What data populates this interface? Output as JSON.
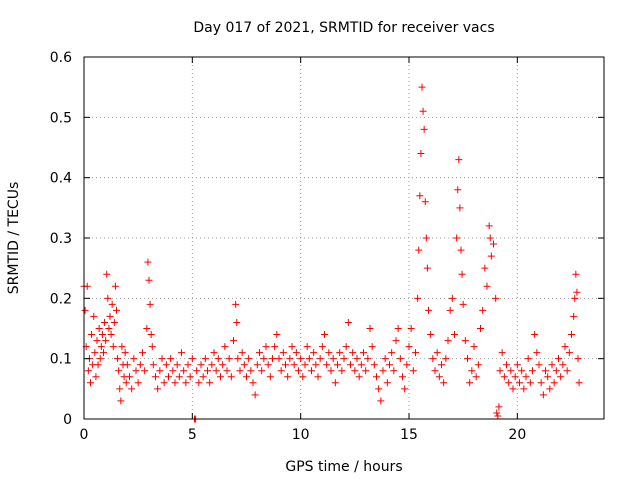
{
  "chart_data": {
    "type": "scatter",
    "title": "Day 017 of 2021, SRMTID for receiver vacs",
    "xlabel": "GPS time / hours",
    "ylabel": "SRMTID / TECUs",
    "xlim": [
      0,
      24
    ],
    "ylim": [
      0,
      0.6
    ],
    "xticks": [
      0,
      5,
      10,
      15,
      20
    ],
    "yticks": [
      0,
      0.1,
      0.2,
      0.3,
      0.4,
      0.5,
      0.6
    ],
    "xtick_labels": [
      "0",
      "5",
      "10",
      "15",
      "20"
    ],
    "ytick_labels": [
      "0",
      "0.1",
      "0.2",
      "0.3",
      "0.4",
      "0.5",
      "0.6"
    ],
    "grid": true,
    "marker": "+",
    "colors": {
      "series": "#ff0000",
      "grid": "#a0a0a0",
      "axis": "#000000"
    },
    "series": [
      {
        "name": "SRMTID",
        "points": [
          [
            0.0,
            0.22
          ],
          [
            0.05,
            0.18
          ],
          [
            0.1,
            0.12
          ],
          [
            0.15,
            0.22
          ],
          [
            0.2,
            0.08
          ],
          [
            0.25,
            0.1
          ],
          [
            0.3,
            0.06
          ],
          [
            0.35,
            0.14
          ],
          [
            0.4,
            0.09
          ],
          [
            0.45,
            0.17
          ],
          [
            0.5,
            0.11
          ],
          [
            0.55,
            0.07
          ],
          [
            0.6,
            0.13
          ],
          [
            0.65,
            0.09
          ],
          [
            0.7,
            0.15
          ],
          [
            0.75,
            0.1
          ],
          [
            0.8,
            0.12
          ],
          [
            0.85,
            0.14
          ],
          [
            0.9,
            0.11
          ],
          [
            0.95,
            0.16
          ],
          [
            1.0,
            0.13
          ],
          [
            1.05,
            0.24
          ],
          [
            1.1,
            0.2
          ],
          [
            1.15,
            0.15
          ],
          [
            1.2,
            0.17
          ],
          [
            1.25,
            0.14
          ],
          [
            1.3,
            0.19
          ],
          [
            1.35,
            0.12
          ],
          [
            1.4,
            0.16
          ],
          [
            1.45,
            0.22
          ],
          [
            1.5,
            0.18
          ],
          [
            1.55,
            0.1
          ],
          [
            1.6,
            0.08
          ],
          [
            1.65,
            0.05
          ],
          [
            1.7,
            0.03
          ],
          [
            1.75,
            0.12
          ],
          [
            1.8,
            0.09
          ],
          [
            1.85,
            0.07
          ],
          [
            1.9,
            0.11
          ],
          [
            1.95,
            0.06
          ],
          [
            2.0,
            0.09
          ],
          [
            2.1,
            0.07
          ],
          [
            2.2,
            0.05
          ],
          [
            2.3,
            0.1
          ],
          [
            2.4,
            0.08
          ],
          [
            2.5,
            0.06
          ],
          [
            2.6,
            0.09
          ],
          [
            2.7,
            0.11
          ],
          [
            2.8,
            0.08
          ],
          [
            2.9,
            0.15
          ],
          [
            2.95,
            0.26
          ],
          [
            3.0,
            0.23
          ],
          [
            3.05,
            0.19
          ],
          [
            3.1,
            0.14
          ],
          [
            3.15,
            0.12
          ],
          [
            3.2,
            0.09
          ],
          [
            3.3,
            0.07
          ],
          [
            3.4,
            0.05
          ],
          [
            3.5,
            0.08
          ],
          [
            3.6,
            0.1
          ],
          [
            3.7,
            0.06
          ],
          [
            3.8,
            0.09
          ],
          [
            3.9,
            0.07
          ],
          [
            4.0,
            0.1
          ],
          [
            4.1,
            0.08
          ],
          [
            4.2,
            0.06
          ],
          [
            4.3,
            0.09
          ],
          [
            4.4,
            0.07
          ],
          [
            4.5,
            0.11
          ],
          [
            4.6,
            0.08
          ],
          [
            4.7,
            0.06
          ],
          [
            4.8,
            0.09
          ],
          [
            4.9,
            0.07
          ],
          [
            5.0,
            0.1
          ],
          [
            5.1,
            0.0
          ],
          [
            5.15,
            0.0
          ],
          [
            5.2,
            0.08
          ],
          [
            5.3,
            0.06
          ],
          [
            5.4,
            0.09
          ],
          [
            5.5,
            0.07
          ],
          [
            5.6,
            0.1
          ],
          [
            5.7,
            0.08
          ],
          [
            5.8,
            0.06
          ],
          [
            5.9,
            0.09
          ],
          [
            6.0,
            0.11
          ],
          [
            6.1,
            0.08
          ],
          [
            6.2,
            0.1
          ],
          [
            6.3,
            0.07
          ],
          [
            6.4,
            0.09
          ],
          [
            6.5,
            0.12
          ],
          [
            6.6,
            0.08
          ],
          [
            6.7,
            0.1
          ],
          [
            6.8,
            0.07
          ],
          [
            6.9,
            0.13
          ],
          [
            7.0,
            0.19
          ],
          [
            7.05,
            0.16
          ],
          [
            7.1,
            0.1
          ],
          [
            7.2,
            0.08
          ],
          [
            7.3,
            0.11
          ],
          [
            7.4,
            0.09
          ],
          [
            7.5,
            0.07
          ],
          [
            7.6,
            0.1
          ],
          [
            7.7,
            0.08
          ],
          [
            7.8,
            0.06
          ],
          [
            7.9,
            0.04
          ],
          [
            8.0,
            0.09
          ],
          [
            8.1,
            0.11
          ],
          [
            8.2,
            0.08
          ],
          [
            8.3,
            0.1
          ],
          [
            8.4,
            0.12
          ],
          [
            8.5,
            0.09
          ],
          [
            8.6,
            0.07
          ],
          [
            8.7,
            0.1
          ],
          [
            8.8,
            0.12
          ],
          [
            8.9,
            0.14
          ],
          [
            9.0,
            0.1
          ],
          [
            9.1,
            0.08
          ],
          [
            9.2,
            0.11
          ],
          [
            9.3,
            0.09
          ],
          [
            9.4,
            0.07
          ],
          [
            9.5,
            0.1
          ],
          [
            9.6,
            0.12
          ],
          [
            9.7,
            0.09
          ],
          [
            9.8,
            0.11
          ],
          [
            9.9,
            0.08
          ],
          [
            10.0,
            0.1
          ],
          [
            10.1,
            0.07
          ],
          [
            10.2,
            0.09
          ],
          [
            10.3,
            0.12
          ],
          [
            10.4,
            0.1
          ],
          [
            10.5,
            0.08
          ],
          [
            10.6,
            0.11
          ],
          [
            10.7,
            0.09
          ],
          [
            10.8,
            0.07
          ],
          [
            10.9,
            0.1
          ],
          [
            11.0,
            0.12
          ],
          [
            11.1,
            0.14
          ],
          [
            11.2,
            0.09
          ],
          [
            11.3,
            0.11
          ],
          [
            11.4,
            0.08
          ],
          [
            11.5,
            0.1
          ],
          [
            11.6,
            0.06
          ],
          [
            11.7,
            0.09
          ],
          [
            11.8,
            0.11
          ],
          [
            11.9,
            0.08
          ],
          [
            12.0,
            0.1
          ],
          [
            12.1,
            0.12
          ],
          [
            12.2,
            0.16
          ],
          [
            12.3,
            0.09
          ],
          [
            12.4,
            0.11
          ],
          [
            12.5,
            0.08
          ],
          [
            12.6,
            0.1
          ],
          [
            12.7,
            0.07
          ],
          [
            12.8,
            0.09
          ],
          [
            12.9,
            0.11
          ],
          [
            13.0,
            0.08
          ],
          [
            13.1,
            0.1
          ],
          [
            13.2,
            0.15
          ],
          [
            13.3,
            0.12
          ],
          [
            13.4,
            0.09
          ],
          [
            13.5,
            0.07
          ],
          [
            13.6,
            0.05
          ],
          [
            13.7,
            0.03
          ],
          [
            13.8,
            0.08
          ],
          [
            13.9,
            0.1
          ],
          [
            14.0,
            0.06
          ],
          [
            14.1,
            0.09
          ],
          [
            14.2,
            0.11
          ],
          [
            14.3,
            0.08
          ],
          [
            14.4,
            0.13
          ],
          [
            14.5,
            0.15
          ],
          [
            14.6,
            0.1
          ],
          [
            14.7,
            0.07
          ],
          [
            14.8,
            0.05
          ],
          [
            14.9,
            0.09
          ],
          [
            15.0,
            0.12
          ],
          [
            15.1,
            0.15
          ],
          [
            15.2,
            0.08
          ],
          [
            15.3,
            0.11
          ],
          [
            15.4,
            0.2
          ],
          [
            15.45,
            0.28
          ],
          [
            15.5,
            0.37
          ],
          [
            15.55,
            0.44
          ],
          [
            15.6,
            0.55
          ],
          [
            15.65,
            0.51
          ],
          [
            15.7,
            0.48
          ],
          [
            15.75,
            0.36
          ],
          [
            15.8,
            0.3
          ],
          [
            15.85,
            0.25
          ],
          [
            15.9,
            0.18
          ],
          [
            16.0,
            0.14
          ],
          [
            16.1,
            0.1
          ],
          [
            16.2,
            0.08
          ],
          [
            16.3,
            0.11
          ],
          [
            16.4,
            0.07
          ],
          [
            16.5,
            0.09
          ],
          [
            16.6,
            0.06
          ],
          [
            16.7,
            0.1
          ],
          [
            16.8,
            0.13
          ],
          [
            16.9,
            0.18
          ],
          [
            17.0,
            0.2
          ],
          [
            17.1,
            0.14
          ],
          [
            17.2,
            0.3
          ],
          [
            17.25,
            0.38
          ],
          [
            17.3,
            0.43
          ],
          [
            17.35,
            0.35
          ],
          [
            17.4,
            0.28
          ],
          [
            17.45,
            0.24
          ],
          [
            17.5,
            0.19
          ],
          [
            17.6,
            0.13
          ],
          [
            17.7,
            0.1
          ],
          [
            17.8,
            0.06
          ],
          [
            17.9,
            0.08
          ],
          [
            18.0,
            0.12
          ],
          [
            18.1,
            0.07
          ],
          [
            18.2,
            0.09
          ],
          [
            18.3,
            0.15
          ],
          [
            18.4,
            0.18
          ],
          [
            18.5,
            0.25
          ],
          [
            18.6,
            0.22
          ],
          [
            18.7,
            0.32
          ],
          [
            18.75,
            0.3
          ],
          [
            18.8,
            0.27
          ],
          [
            18.9,
            0.29
          ],
          [
            19.0,
            0.2
          ],
          [
            19.05,
            0.01
          ],
          [
            19.1,
            0.005
          ],
          [
            19.15,
            0.02
          ],
          [
            19.2,
            0.08
          ],
          [
            19.3,
            0.11
          ],
          [
            19.4,
            0.07
          ],
          [
            19.5,
            0.09
          ],
          [
            19.6,
            0.06
          ],
          [
            19.7,
            0.08
          ],
          [
            19.8,
            0.05
          ],
          [
            19.9,
            0.07
          ],
          [
            20.0,
            0.09
          ],
          [
            20.1,
            0.06
          ],
          [
            20.2,
            0.08
          ],
          [
            20.3,
            0.05
          ],
          [
            20.4,
            0.07
          ],
          [
            20.5,
            0.1
          ],
          [
            20.6,
            0.06
          ],
          [
            20.7,
            0.08
          ],
          [
            20.8,
            0.14
          ],
          [
            20.9,
            0.11
          ],
          [
            21.0,
            0.09
          ],
          [
            21.1,
            0.06
          ],
          [
            21.2,
            0.04
          ],
          [
            21.3,
            0.08
          ],
          [
            21.4,
            0.07
          ],
          [
            21.5,
            0.05
          ],
          [
            21.6,
            0.09
          ],
          [
            21.7,
            0.06
          ],
          [
            21.8,
            0.08
          ],
          [
            21.9,
            0.1
          ],
          [
            22.0,
            0.07
          ],
          [
            22.1,
            0.09
          ],
          [
            22.2,
            0.12
          ],
          [
            22.3,
            0.08
          ],
          [
            22.4,
            0.11
          ],
          [
            22.5,
            0.14
          ],
          [
            22.6,
            0.17
          ],
          [
            22.65,
            0.2
          ],
          [
            22.7,
            0.24
          ],
          [
            22.75,
            0.21
          ],
          [
            22.8,
            0.1
          ],
          [
            22.85,
            0.06
          ]
        ]
      }
    ]
  }
}
